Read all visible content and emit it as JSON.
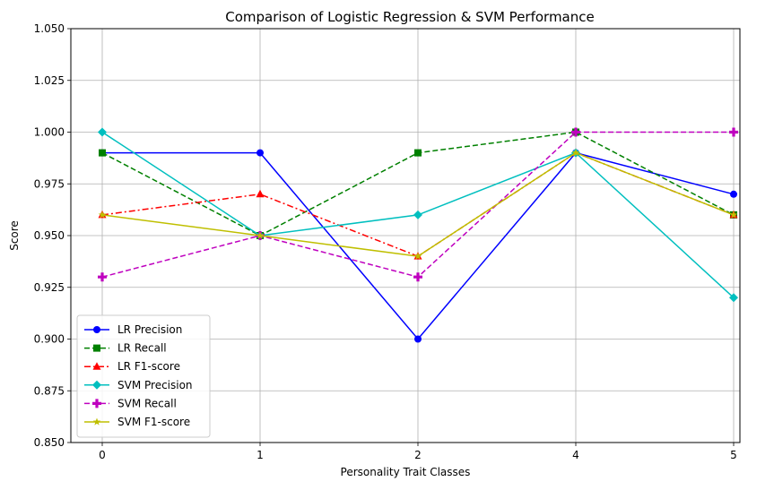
{
  "chart_data": {
    "type": "line",
    "title": "Comparison of Logistic Regression & SVM Performance",
    "xlabel": "Personality Trait Classes",
    "ylabel": "Score",
    "categories": [
      "0",
      "1",
      "2",
      "4",
      "5"
    ],
    "ylim": [
      0.85,
      1.05
    ],
    "yticks": [
      "0.850",
      "0.875",
      "0.900",
      "0.925",
      "0.950",
      "0.975",
      "1.000",
      "1.025",
      "1.050"
    ],
    "grid": true,
    "legend_position": "lower-left",
    "series": [
      {
        "name": "LR Precision",
        "values": [
          0.99,
          0.99,
          0.9,
          0.99,
          0.97
        ],
        "color": "#0000ff",
        "dash": "solid",
        "marker": "circle"
      },
      {
        "name": "LR Recall",
        "values": [
          0.99,
          0.95,
          0.99,
          1.0,
          0.96
        ],
        "color": "#008000",
        "dash": "dashed",
        "marker": "square"
      },
      {
        "name": "LR F1-score",
        "values": [
          0.96,
          0.97,
          0.94,
          0.99,
          0.96
        ],
        "color": "#ff0000",
        "dash": "dashdot",
        "marker": "triangle"
      },
      {
        "name": "SVM Precision",
        "values": [
          1.0,
          0.95,
          0.96,
          0.99,
          0.92
        ],
        "color": "#00bfbf",
        "dash": "solid",
        "marker": "diamond"
      },
      {
        "name": "SVM Recall",
        "values": [
          0.93,
          0.95,
          0.93,
          1.0,
          1.0
        ],
        "color": "#bf00bf",
        "dash": "dashed",
        "marker": "plus"
      },
      {
        "name": "SVM F1-score",
        "values": [
          0.96,
          0.95,
          0.94,
          0.99,
          0.96
        ],
        "color": "#bfbf00",
        "dash": "solid",
        "marker": "star"
      }
    ]
  }
}
